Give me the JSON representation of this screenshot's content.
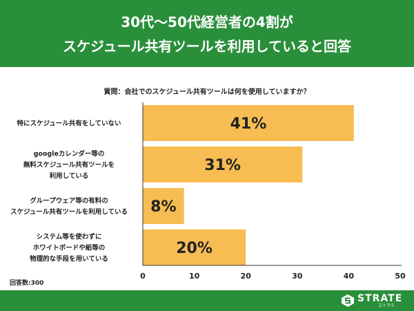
{
  "header": {
    "title_line1": "30代〜50代経営者の4割が",
    "title_line2": "スケジュール共有ツールを利用していると回答"
  },
  "question": "質問：会社でのスケジュール共有ツールは何を使用していますか？",
  "footnote": "回答数:300",
  "colors": {
    "header_bg": "#2a8f3b",
    "bar": "#f7bd52",
    "axis": "#333333"
  },
  "chart_data": {
    "type": "bar",
    "orientation": "horizontal",
    "categories": [
      [
        "特にスケジュール共有をしていない"
      ],
      [
        "googleカレンダー等の",
        "無料スケジュール共有ツールを",
        "利用している"
      ],
      [
        "グループウェア等の有料の",
        "スケジュール共有ツールを利用している"
      ],
      [
        "システム等を使わずに",
        "ホワイトボードや紙等の",
        "物理的な手段を用いている"
      ]
    ],
    "values": [
      41,
      31,
      8,
      20
    ],
    "value_labels": [
      "41%",
      "31%",
      "8%",
      "20%"
    ],
    "xlim": [
      0,
      50
    ],
    "xticks": [
      "0",
      "10",
      "20",
      "30",
      "40",
      "50"
    ],
    "grid": false
  },
  "brand": {
    "name": "STRATE",
    "sub": "ストラテ"
  }
}
